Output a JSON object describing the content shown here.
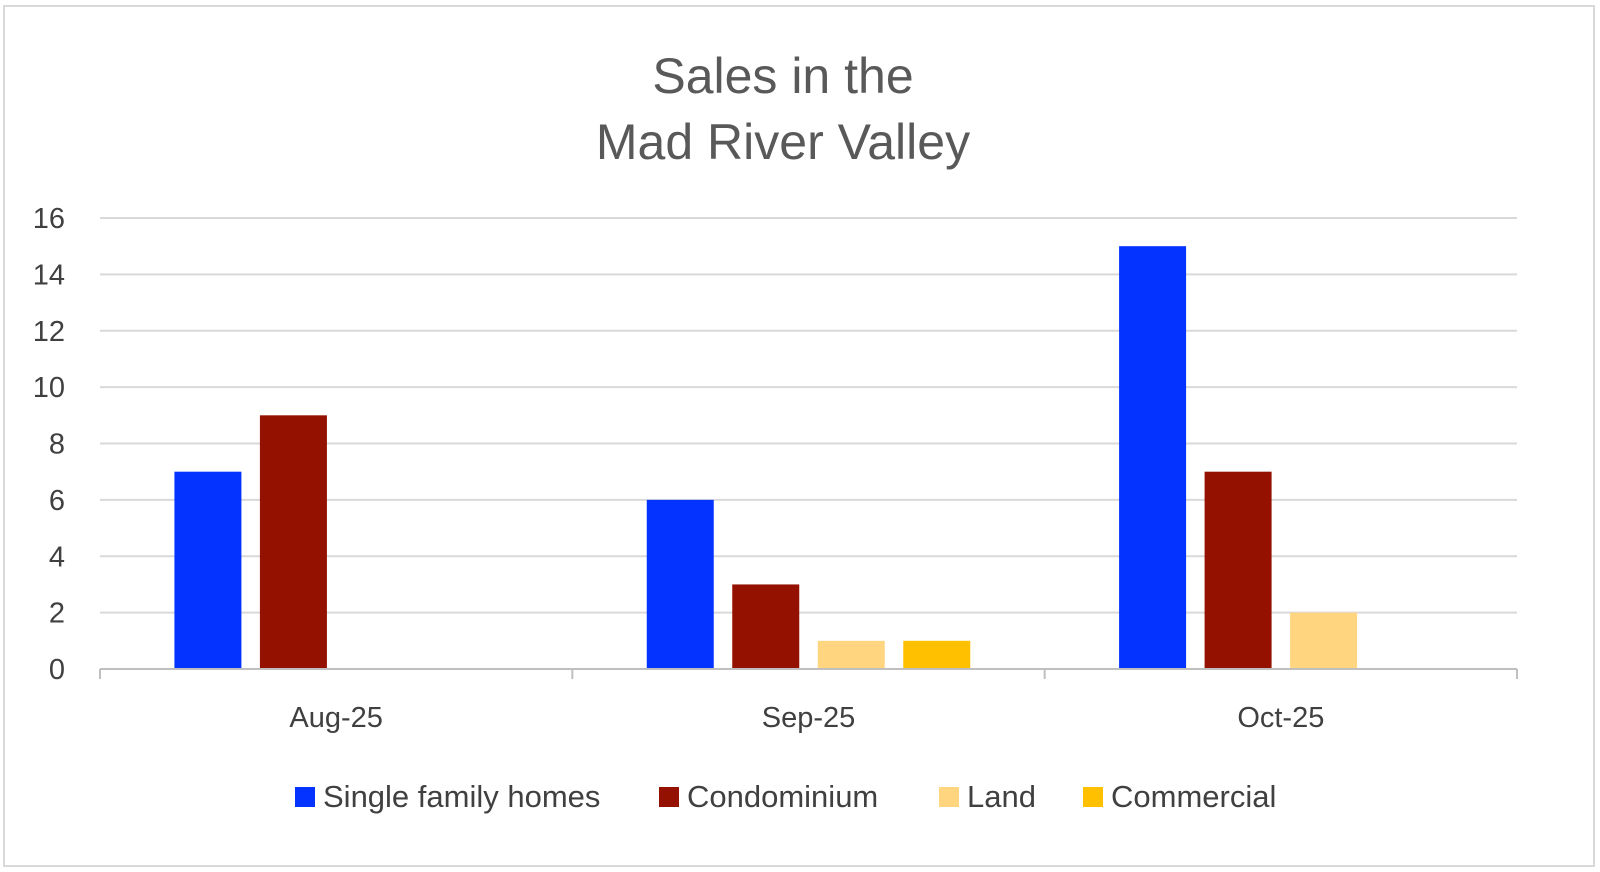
{
  "chart_data": {
    "type": "bar",
    "title": [
      "Sales in the",
      "Mad River Valley"
    ],
    "categories": [
      "Aug-25",
      "Sep-25",
      "Oct-25"
    ],
    "series": [
      {
        "name": "Single family homes",
        "values": [
          7,
          6,
          15
        ],
        "color": "#0433ff"
      },
      {
        "name": "Condominium",
        "values": [
          9,
          3,
          7
        ],
        "color": "#941100"
      },
      {
        "name": "Land",
        "values": [
          0,
          1,
          2
        ],
        "color": "#ffd580"
      },
      {
        "name": "Commercial",
        "values": [
          0,
          1,
          0
        ],
        "color": "#ffc000"
      }
    ],
    "ylim": [
      0,
      16
    ],
    "yticks": [
      "0",
      "2",
      "4",
      "6",
      "8",
      "10",
      "12",
      "14",
      "16"
    ],
    "grid": true,
    "legend_position": "bottom",
    "colors": {
      "gridline": "#d9d9d9",
      "axis": "#bfbfbf",
      "title": "#595959",
      "text": "#404040"
    }
  }
}
